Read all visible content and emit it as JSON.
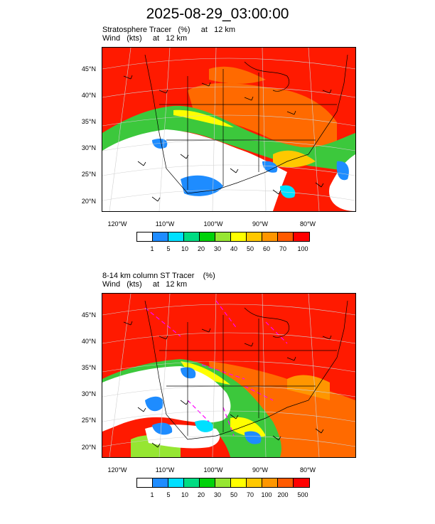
{
  "title": "2025-08-29_03:00:00",
  "panel1": {
    "line1": "Stratosphere Tracer   (%)     at   12 km",
    "line2": "Wind   (kts)     at   12 km",
    "lat_labels": [
      "45°N",
      "40°N",
      "35°N",
      "30°N",
      "25°N",
      "20°N"
    ],
    "lon_labels": [
      "120°W",
      "110°W",
      "100°W",
      "90°W",
      "80°W"
    ],
    "colorbar_labels": [
      "1",
      "5",
      "10",
      "20",
      "30",
      "40",
      "50",
      "60",
      "70",
      "100"
    ]
  },
  "panel2": {
    "line1": "8-14 km column ST Tracer    (%)",
    "line2": "Wind   (kts)     at   12 km",
    "lat_labels": [
      "45°N",
      "40°N",
      "35°N",
      "30°N",
      "25°N",
      "20°N"
    ],
    "lon_labels": [
      "120°W",
      "110°W",
      "100°W",
      "90°W",
      "80°W"
    ],
    "colorbar_labels": [
      "1",
      "5",
      "10",
      "20",
      "30",
      "50",
      "70",
      "100",
      "200",
      "500"
    ]
  },
  "colorbar_colors": [
    "#ffffff",
    "#1e8cff",
    "#00e0ff",
    "#00dc82",
    "#00d20a",
    "#96e632",
    "#ffff00",
    "#ffc800",
    "#ff9600",
    "#ff5a00",
    "#ff0000"
  ],
  "colors": {
    "tracer_high": "#ff1a00",
    "tracer_mid": "#ff6a00",
    "tracer_green": "#3cc83c",
    "tracer_blue": "#1e8cff",
    "highlight_line": "#ff00ff"
  }
}
